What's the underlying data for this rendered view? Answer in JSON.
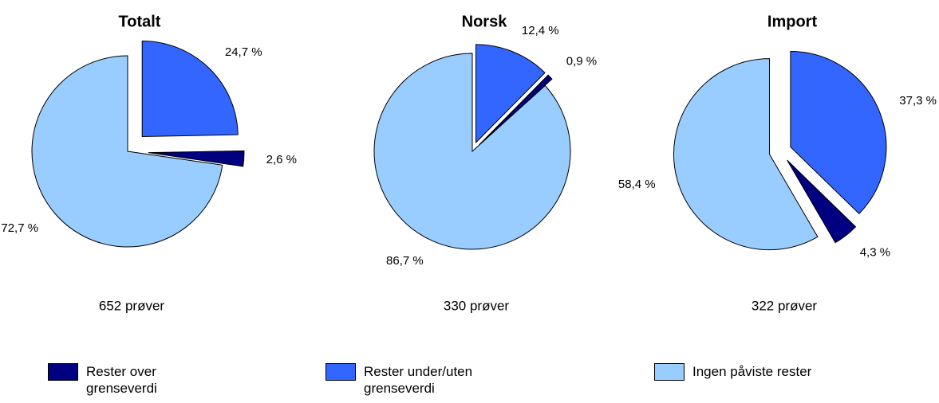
{
  "chart_data": [
    {
      "type": "pie",
      "title": "Totalt",
      "subtitle": "652 prøver",
      "values": [
        24.7,
        2.6,
        72.7
      ],
      "value_labels": [
        "24,7 %",
        "2,6 %",
        "72,7 %"
      ]
    },
    {
      "type": "pie",
      "title": "Norsk",
      "subtitle": "330 prøver",
      "values": [
        12.4,
        0.9,
        86.7
      ],
      "value_labels": [
        "12,4 %",
        "0,9 %",
        "86,7 %"
      ]
    },
    {
      "type": "pie",
      "title": "Import",
      "subtitle": "322 prøver",
      "values": [
        37.3,
        4.3,
        58.4
      ],
      "value_labels": [
        "37,3 %",
        "4,3 %",
        "58,4 %"
      ]
    }
  ],
  "legend": {
    "labels": [
      "Rester under/uten grenseverdi",
      "Rester over grenseverdi",
      "Ingen påviste rester"
    ],
    "colors": [
      "#3366ff",
      "#000080",
      "#99ccff"
    ]
  }
}
